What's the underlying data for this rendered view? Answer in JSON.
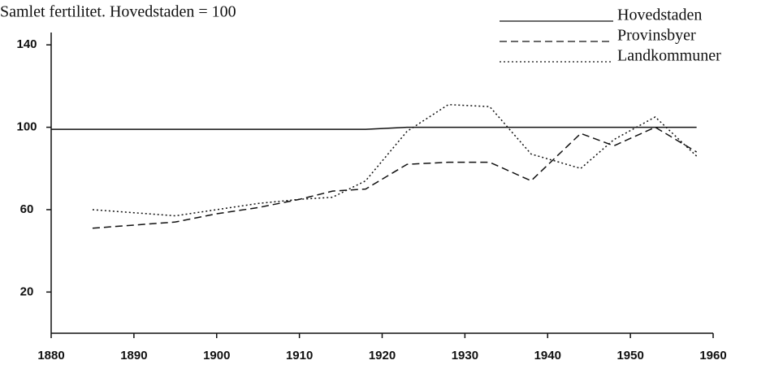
{
  "chart_data": {
    "type": "line",
    "title": "Samlet fertilitet. Hovedstaden = 100",
    "x": [
      1880,
      1885,
      1895,
      1900,
      1905,
      1910,
      1914,
      1918,
      1923,
      1928,
      1933,
      1938,
      1944,
      1948,
      1953,
      1958
    ],
    "series": [
      {
        "name": "Hovedstaden",
        "color": "#111111",
        "dash": "solid",
        "values": [
          99,
          99,
          99,
          99,
          99,
          99,
          99,
          99,
          100,
          100,
          100,
          100,
          100,
          100,
          100,
          100
        ]
      },
      {
        "name": "Provinsbyer",
        "color": "#111111",
        "dash": "dashed",
        "values": [
          null,
          51,
          54,
          58,
          61,
          65,
          69,
          70,
          82,
          83,
          83,
          74,
          97,
          91,
          100,
          88
        ]
      },
      {
        "name": "Landkommuner",
        "color": "#111111",
        "dash": "dotted",
        "values": [
          null,
          60,
          57,
          60,
          63,
          65,
          66,
          74,
          98,
          111,
          110,
          87,
          80,
          94,
          105,
          86
        ]
      }
    ],
    "xlim": [
      1880,
      1960
    ],
    "xticks": [
      1880,
      1890,
      1900,
      1910,
      1920,
      1930,
      1940,
      1950,
      1960
    ],
    "ylim": [
      0,
      146
    ],
    "yticks": [
      20,
      60,
      100,
      140
    ],
    "grid": false,
    "legend": "top-right"
  }
}
